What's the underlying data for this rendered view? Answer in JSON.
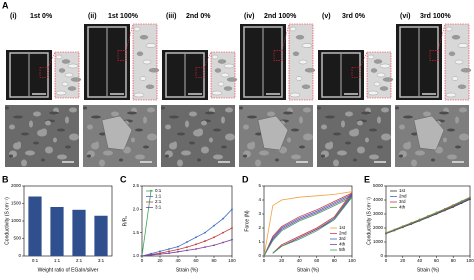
{
  "panel_a": {
    "letter": "A",
    "columns": [
      {
        "roman": "(i)",
        "label": "1st 0%"
      },
      {
        "roman": "(ii)",
        "label": "1st 100%"
      },
      {
        "roman": "(iii)",
        "label": "2nd 0%"
      },
      {
        "roman": "(iv)",
        "label": "2nd 100%"
      },
      {
        "roman": "(v)",
        "label": "3rd 0%"
      },
      {
        "roman": "(vi)",
        "label": "3rd 100%"
      }
    ]
  },
  "chart_data": [
    {
      "type": "bar",
      "letter": "B",
      "x_label": "Weight ratio of EGaIn/silver",
      "y_label": "Conductivity (S cm⁻¹)",
      "categories": [
        "0:1",
        "1:1",
        "2:1",
        "3:1"
      ],
      "values": [
        1700,
        1400,
        1320,
        1150
      ],
      "color": "#2f4f8f",
      "ylim": [
        0,
        2000
      ],
      "yticks": [
        0,
        500,
        1000,
        1500,
        2000
      ]
    },
    {
      "type": "line",
      "letter": "C",
      "x_label": "Strain (%)",
      "y_label": "R/R₀",
      "legend": "upper left",
      "x": [
        0,
        10,
        20,
        30,
        40,
        50,
        60,
        70,
        80,
        90,
        100
      ],
      "series": [
        {
          "name": "0:1",
          "color": "#3aa655",
          "values": [
            1.0,
            2.4,
            null,
            null,
            null,
            null,
            null,
            null,
            null,
            null,
            null
          ]
        },
        {
          "name": "1:1",
          "color": "#3b6fc4",
          "values": [
            1.0,
            1.05,
            1.1,
            1.15,
            1.2,
            1.3,
            1.4,
            1.5,
            1.65,
            1.8,
            2.0
          ]
        },
        {
          "name": "2:1",
          "color": "#c23b3b",
          "values": [
            1.0,
            1.03,
            1.06,
            1.1,
            1.14,
            1.19,
            1.25,
            1.32,
            1.4,
            1.5,
            1.6
          ]
        },
        {
          "name": "3:1",
          "color": "#7b3fa0",
          "values": [
            1.0,
            1.02,
            1.04,
            1.06,
            1.09,
            1.12,
            1.15,
            1.19,
            1.23,
            1.29,
            1.35
          ]
        }
      ],
      "xlim": [
        0,
        100
      ],
      "xticks": [
        0,
        20,
        40,
        60,
        80,
        100
      ],
      "ylim": [
        1,
        2.5
      ],
      "yticks": [
        {
          "value": 1,
          "label": "1.0"
        },
        1.5,
        {
          "value": 2,
          "label": "2.0"
        },
        2.5
      ]
    },
    {
      "type": "line",
      "letter": "D",
      "x_label": "Strain (%)",
      "y_label": "Force (N)",
      "legend": "lower right",
      "series": [
        {
          "name": "1st",
          "color": "#f0a040",
          "x": [
            0,
            10,
            20,
            40,
            60,
            80,
            100,
            80,
            60,
            40,
            20,
            10
          ],
          "values": [
            0,
            3.6,
            4.0,
            4.2,
            4.3,
            4.4,
            4.6,
            2.8,
            2.0,
            1.4,
            0.8,
            0.2
          ]
        },
        {
          "name": "2nd",
          "color": "#d04040",
          "x": [
            0,
            10,
            20,
            40,
            60,
            80,
            100,
            80,
            60,
            40,
            20,
            10
          ],
          "values": [
            0,
            1.4,
            2.1,
            2.8,
            3.3,
            3.9,
            4.5,
            2.8,
            2.0,
            1.4,
            0.8,
            0.2
          ]
        },
        {
          "name": "3rd",
          "color": "#4060c0",
          "x": [
            0,
            10,
            20,
            40,
            60,
            80,
            100,
            80,
            60,
            40,
            20,
            10
          ],
          "values": [
            0,
            1.3,
            2.0,
            2.7,
            3.2,
            3.8,
            4.4,
            2.7,
            1.9,
            1.3,
            0.7,
            0.2
          ]
        },
        {
          "name": "4th",
          "color": "#8040a0",
          "x": [
            0,
            10,
            20,
            40,
            60,
            80,
            100,
            80,
            60,
            40,
            20,
            10
          ],
          "values": [
            0,
            1.2,
            1.9,
            2.6,
            3.1,
            3.7,
            4.3,
            2.6,
            1.9,
            1.3,
            0.7,
            0.2
          ]
        },
        {
          "name": "5th",
          "color": "#40a060",
          "x": [
            0,
            10,
            20,
            40,
            60,
            80,
            100,
            80,
            60,
            40,
            20,
            10
          ],
          "values": [
            0,
            1.1,
            1.8,
            2.5,
            3.0,
            3.6,
            4.2,
            2.6,
            1.8,
            1.2,
            0.7,
            0.2
          ]
        }
      ],
      "xlim": [
        0,
        100
      ],
      "xticks": [
        0,
        20,
        40,
        60,
        80,
        100
      ],
      "ylim": [
        0,
        5
      ],
      "yticks": [
        0,
        1,
        2,
        3,
        4,
        5
      ]
    },
    {
      "type": "line",
      "letter": "E",
      "x_label": "Strain (%)",
      "y_label": "Conductivity (S cm⁻¹)",
      "legend": "upper left",
      "x": [
        0,
        10,
        20,
        30,
        40,
        50,
        60,
        70,
        80,
        90,
        100
      ],
      "series": [
        {
          "name": "1st",
          "color": "#333333",
          "values": [
            1600,
            1820,
            2050,
            2280,
            2520,
            2760,
            3000,
            3250,
            3500,
            3780,
            4050
          ]
        },
        {
          "name": "2nd",
          "color": "#3b6fc4",
          "values": [
            1620,
            1850,
            2080,
            2310,
            2550,
            2790,
            3040,
            3290,
            3550,
            3830,
            4100
          ]
        },
        {
          "name": "3rd",
          "color": "#c23b3b",
          "values": [
            1640,
            1870,
            2110,
            2340,
            2580,
            2830,
            3080,
            3330,
            3600,
            3880,
            4150
          ]
        },
        {
          "name": "4th",
          "color": "#6a9a3a",
          "values": [
            1660,
            1890,
            2130,
            2370,
            2610,
            2860,
            3110,
            3370,
            3640,
            3920,
            4200
          ]
        }
      ],
      "xlim": [
        0,
        100
      ],
      "xticks": [
        0,
        20,
        40,
        60,
        80,
        100
      ],
      "ylim": [
        0,
        5000
      ],
      "yticks": [
        0,
        1000,
        2000,
        3000,
        4000,
        5000
      ]
    }
  ]
}
